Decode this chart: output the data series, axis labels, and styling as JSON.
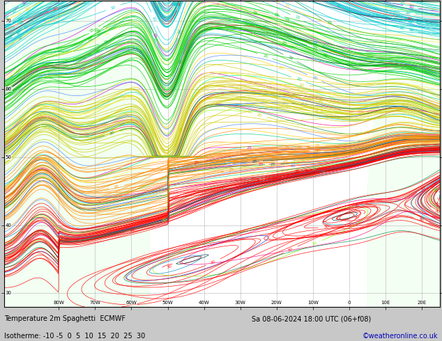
{
  "footer_left": "Temperature 2m Spaghetti  ECMWF",
  "footer_date": "Sa 08-06-2024 18:00 UTC (06 + f08)",
  "footer_date2": "Sa 08-06-2024 18:00 UTC (06+f08)",
  "isotherme_label": "Isotherme: -10 -5  0  5  10  15  20  25  30",
  "watermark": "©weatheronline.co.uk",
  "bg_color": "#c8c8c8",
  "plot_bg": "#ffffff",
  "grid_color": "#888888",
  "figsize": [
    6.34,
    4.9
  ],
  "dpi": 100,
  "xlim": [
    -95,
    25
  ],
  "ylim": [
    28,
    73
  ],
  "x_ticks": [
    -80,
    -70,
    -60,
    -50,
    -40,
    -30,
    -20,
    -10,
    0,
    10,
    20
  ],
  "x_tick_labels": [
    "80W",
    "70W",
    "60W",
    "50W",
    "40W",
    "30W",
    "20W",
    "10W",
    "0",
    "10E",
    "20E"
  ],
  "y_ticks": [
    30,
    40,
    50,
    60,
    70
  ],
  "y_tick_labels": [
    "30",
    "40",
    "50",
    "60",
    "70"
  ],
  "isotherm_values": [
    -10,
    -5,
    0,
    5,
    10,
    15,
    20,
    25,
    30
  ],
  "isotherm_colors": {
    "-10": "#aa00aa",
    "-5": "#0000cc",
    "0": "#0055ff",
    "5": "#00aaff",
    "10": "#00cccc",
    "15": "#00cc00",
    "20": "#cccc00",
    "25": "#ff8800",
    "30": "#ff0000"
  },
  "num_members": 51,
  "seed": 7
}
